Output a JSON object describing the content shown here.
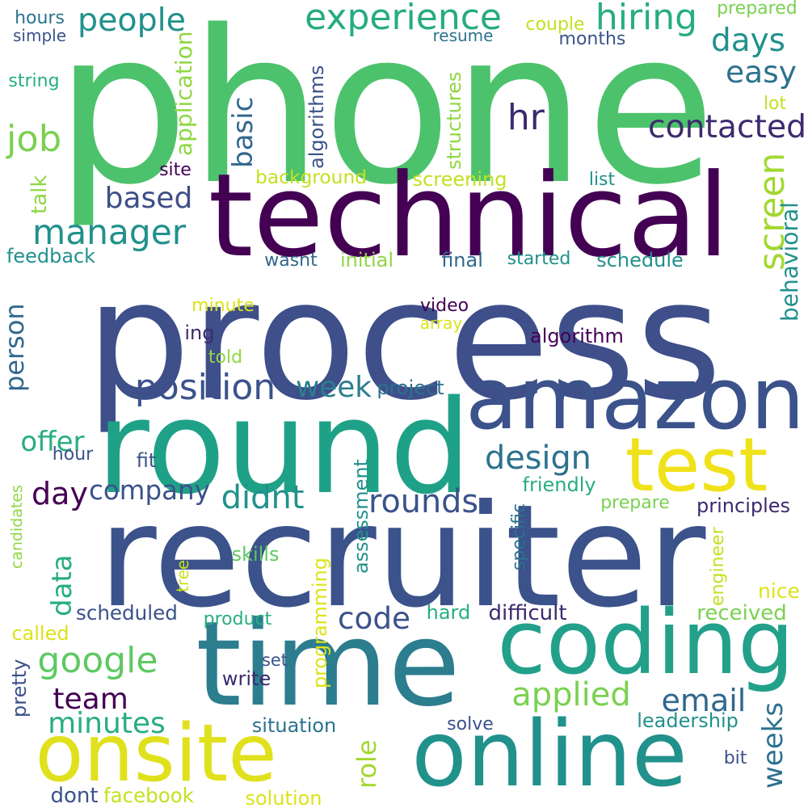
{
  "palette": {
    "dark_purple": "#440154",
    "indigo": "#3b528b",
    "blue_teal": "#2c728e",
    "teal": "#21918c",
    "green_teal": "#28ae80",
    "green": "#5ec962",
    "lime": "#addc30",
    "yellow": "#fde725"
  },
  "words": [
    {
      "text": "phone",
      "color": "#4cc26c"
    },
    {
      "text": "process",
      "color": "#3e4f8a"
    },
    {
      "text": "recruiter",
      "color": "#3b528b"
    },
    {
      "text": "technical",
      "color": "#440154"
    },
    {
      "text": "round",
      "color": "#1fa187"
    },
    {
      "text": "time",
      "color": "#2c7d8e"
    },
    {
      "text": "amazon",
      "color": "#3b528b"
    },
    {
      "text": "coding",
      "color": "#23a08a"
    },
    {
      "text": "online",
      "color": "#21918c"
    },
    {
      "text": "test",
      "color": "#f0e21a"
    },
    {
      "text": "onsite",
      "color": "#e0e11c"
    },
    {
      "text": "experience",
      "color": "#25ab82"
    },
    {
      "text": "people",
      "color": "#21918c"
    },
    {
      "text": "hiring",
      "color": "#27ad81"
    },
    {
      "text": "manager",
      "color": "#21918c"
    },
    {
      "text": "job",
      "color": "#7ad151"
    },
    {
      "text": "hr",
      "color": "#3b2a6e"
    },
    {
      "text": "contacted",
      "color": "#3e2a6e"
    },
    {
      "text": "days",
      "color": "#21918c"
    },
    {
      "text": "easy",
      "color": "#2c728e"
    },
    {
      "text": "position",
      "color": "#3b528b"
    },
    {
      "text": "week",
      "color": "#2c7d8e"
    },
    {
      "text": "based",
      "color": "#3e4f8a"
    },
    {
      "text": "basic",
      "color": "#31688e"
    },
    {
      "text": "screen",
      "color": "#a2d82f"
    },
    {
      "text": "behavioral",
      "color": "#21918c"
    },
    {
      "text": "person",
      "color": "#31688e"
    },
    {
      "text": "offer",
      "color": "#28ae80"
    },
    {
      "text": "design",
      "color": "#2c728e"
    },
    {
      "text": "day",
      "color": "#440154"
    },
    {
      "text": "company",
      "color": "#3b528b"
    },
    {
      "text": "didnt",
      "color": "#21918c"
    },
    {
      "text": "rounds",
      "color": "#3b528b"
    },
    {
      "text": "data",
      "color": "#27ad81"
    },
    {
      "text": "google",
      "color": "#5ec962"
    },
    {
      "text": "code",
      "color": "#3b528b"
    },
    {
      "text": "team",
      "color": "#440154"
    },
    {
      "text": "minutes",
      "color": "#28ae80"
    },
    {
      "text": "applied",
      "color": "#7ad151"
    },
    {
      "text": "email",
      "color": "#31688e"
    },
    {
      "text": "weeks",
      "color": "#2c728e"
    },
    {
      "text": "role",
      "color": "#a2d82f"
    },
    {
      "text": "hours",
      "color": "#2c728e"
    },
    {
      "text": "simple",
      "color": "#3b528b"
    },
    {
      "text": "string",
      "color": "#28ae80"
    },
    {
      "text": "application",
      "color": "#8fd744"
    },
    {
      "text": "algorithms",
      "color": "#3b528b"
    },
    {
      "text": "resume",
      "color": "#2c728e"
    },
    {
      "text": "structures",
      "color": "#8fd744"
    },
    {
      "text": "couple",
      "color": "#c5e021"
    },
    {
      "text": "months",
      "color": "#3b528b"
    },
    {
      "text": "prepared",
      "color": "#7ad151"
    },
    {
      "text": "lot",
      "color": "#c5e021"
    },
    {
      "text": "site",
      "color": "#440154"
    },
    {
      "text": "background",
      "color": "#c5e021"
    },
    {
      "text": "screening",
      "color": "#c5e021"
    },
    {
      "text": "list",
      "color": "#21918c"
    },
    {
      "text": "talk",
      "color": "#8fd744"
    },
    {
      "text": "feedback",
      "color": "#21918c"
    },
    {
      "text": "wasnt",
      "color": "#31688e"
    },
    {
      "text": "initial",
      "color": "#8fd744"
    },
    {
      "text": "final",
      "color": "#31688e"
    },
    {
      "text": "started",
      "color": "#21918c"
    },
    {
      "text": "schedule",
      "color": "#21918c"
    },
    {
      "text": "minute",
      "color": "#dce319"
    },
    {
      "text": "video",
      "color": "#440154"
    },
    {
      "text": "array",
      "color": "#dce319"
    },
    {
      "text": "ing",
      "color": "#3e2a6e"
    },
    {
      "text": "algorithm",
      "color": "#440154"
    },
    {
      "text": "told",
      "color": "#8fd744"
    },
    {
      "text": "project",
      "color": "#2c728e"
    },
    {
      "text": "hour",
      "color": "#3b528b"
    },
    {
      "text": "fit",
      "color": "#3b528b"
    },
    {
      "text": "candidates",
      "color": "#8fd744"
    },
    {
      "text": "assessment",
      "color": "#21918c"
    },
    {
      "text": "specific",
      "color": "#2c728e"
    },
    {
      "text": "friendly",
      "color": "#28ae80"
    },
    {
      "text": "prepare",
      "color": "#7ad151"
    },
    {
      "text": "principles",
      "color": "#3b2a6e"
    },
    {
      "text": "skills",
      "color": "#5ec962"
    },
    {
      "text": "tree",
      "color": "#c5e021"
    },
    {
      "text": "engineer",
      "color": "#c5e021"
    },
    {
      "text": "nice",
      "color": "#dce319"
    },
    {
      "text": "scheduled",
      "color": "#3b528b"
    },
    {
      "text": "hard",
      "color": "#28ae80"
    },
    {
      "text": "difficult",
      "color": "#3b2a6e"
    },
    {
      "text": "received",
      "color": "#7ad151"
    },
    {
      "text": "called",
      "color": "#dce319"
    },
    {
      "text": "product",
      "color": "#28ae80"
    },
    {
      "text": "programming",
      "color": "#dce319"
    },
    {
      "text": "set",
      "color": "#3b528b"
    },
    {
      "text": "write",
      "color": "#3b2a6e"
    },
    {
      "text": "pretty",
      "color": "#3b528b"
    },
    {
      "text": "situation",
      "color": "#2c728e"
    },
    {
      "text": "solve",
      "color": "#3b528b"
    },
    {
      "text": "leadership",
      "color": "#21918c"
    },
    {
      "text": "bit",
      "color": "#3b528b"
    },
    {
      "text": "dont",
      "color": "#3b528b"
    },
    {
      "text": "facebook",
      "color": "#c5e021"
    },
    {
      "text": "solution",
      "color": "#dce319"
    }
  ]
}
